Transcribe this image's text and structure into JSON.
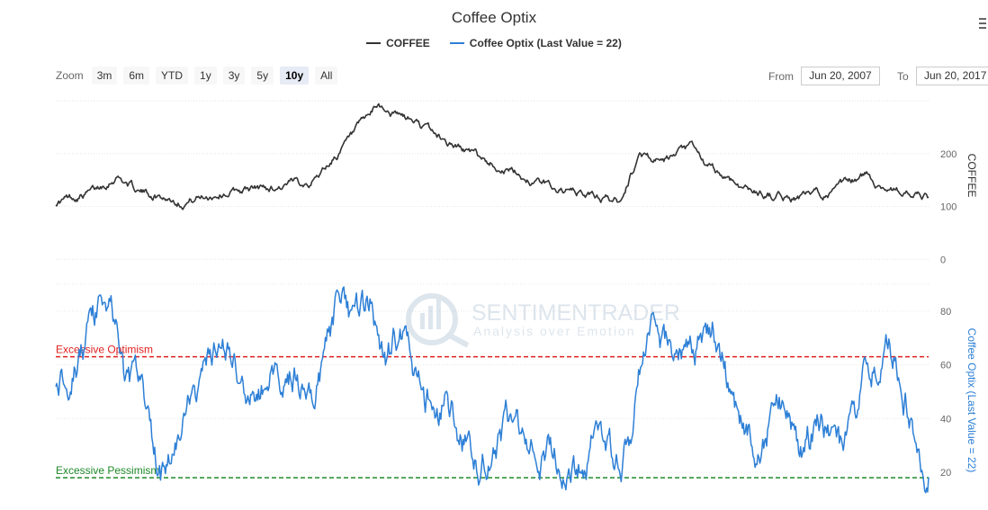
{
  "header": {
    "title": "Coffee Optix",
    "legend": [
      {
        "label": "COFFEE",
        "color": "#333333"
      },
      {
        "label": "Coffee Optix (Last Value = 22)",
        "color": "#2d7fd6"
      }
    ]
  },
  "zoom": {
    "label": "Zoom",
    "buttons": [
      "3m",
      "6m",
      "YTD",
      "1y",
      "3y",
      "5y",
      "10y",
      "All"
    ],
    "active": "10y"
  },
  "range": {
    "from_label": "From",
    "from_value": "Jun 20, 2007",
    "to_label": "To",
    "to_value": "Jun 20, 2017"
  },
  "watermark": {
    "brand": "SENTIMENTRADER",
    "tagline": "Analysis over Emotion"
  },
  "chart_data": [
    {
      "type": "line",
      "name": "COFFEE",
      "ylabel": "COFFEE",
      "yticks": [
        0,
        100,
        200
      ],
      "ylim": [
        -20,
        300
      ],
      "color": "#333333",
      "x_range": [
        "2007-06-20",
        "2017-06-20"
      ],
      "series": [
        {
          "name": "COFFEE",
          "x": [
            "2007-06",
            "2007-12",
            "2008-03",
            "2008-06",
            "2008-12",
            "2009-06",
            "2009-12",
            "2010-06",
            "2010-12",
            "2011-03",
            "2011-05",
            "2011-08",
            "2011-12",
            "2012-06",
            "2012-12",
            "2013-06",
            "2013-12",
            "2014-03",
            "2014-06",
            "2014-10",
            "2014-12",
            "2015-06",
            "2015-12",
            "2016-06",
            "2016-10",
            "2016-12",
            "2017-06"
          ],
          "values": [
            105,
            130,
            160,
            128,
            110,
            128,
            135,
            150,
            240,
            290,
            275,
            260,
            225,
            185,
            150,
            125,
            110,
            200,
            180,
            210,
            175,
            130,
            115,
            130,
            160,
            140,
            115
          ]
        }
      ]
    },
    {
      "type": "line",
      "name": "Coffee Optix (Last Value = 22)",
      "ylabel": "Coffee Optix (Last Value = 22)",
      "yticks": [
        20,
        40,
        60,
        80
      ],
      "ylim": [
        10,
        90
      ],
      "color": "#2d7fd6",
      "x_range": [
        "2007-06-20",
        "2017-06-20"
      ],
      "thresholds": [
        {
          "label": "Excessive Optimism",
          "value": 63,
          "color": "#e0201e"
        },
        {
          "label": "Excessive Pessimism",
          "value": 18,
          "color": "#1f8a2a"
        }
      ],
      "series": [
        {
          "name": "Coffee Optix (Last Value = 22)",
          "x": [
            "2007-06",
            "2007-09",
            "2007-12",
            "2008-02",
            "2008-04",
            "2008-06",
            "2008-09",
            "2008-12",
            "2009-03",
            "2009-06",
            "2009-09",
            "2009-12",
            "2010-03",
            "2010-06",
            "2010-09",
            "2010-12",
            "2011-02",
            "2011-04",
            "2011-06",
            "2011-09",
            "2011-12",
            "2012-03",
            "2012-06",
            "2012-09",
            "2012-12",
            "2013-03",
            "2013-06",
            "2013-09",
            "2013-12",
            "2014-02",
            "2014-04",
            "2014-07",
            "2014-10",
            "2015-01",
            "2015-04",
            "2015-07",
            "2015-10",
            "2016-01",
            "2016-04",
            "2016-07",
            "2016-10",
            "2017-01",
            "2017-04",
            "2017-06"
          ],
          "values": [
            55,
            62,
            75,
            88,
            55,
            50,
            20,
            35,
            55,
            65,
            45,
            55,
            60,
            50,
            78,
            75,
            80,
            55,
            75,
            45,
            45,
            30,
            25,
            35,
            25,
            32,
            20,
            35,
            18,
            40,
            78,
            65,
            60,
            72,
            45,
            30,
            45,
            28,
            40,
            25,
            55,
            70,
            45,
            22
          ]
        }
      ]
    }
  ]
}
